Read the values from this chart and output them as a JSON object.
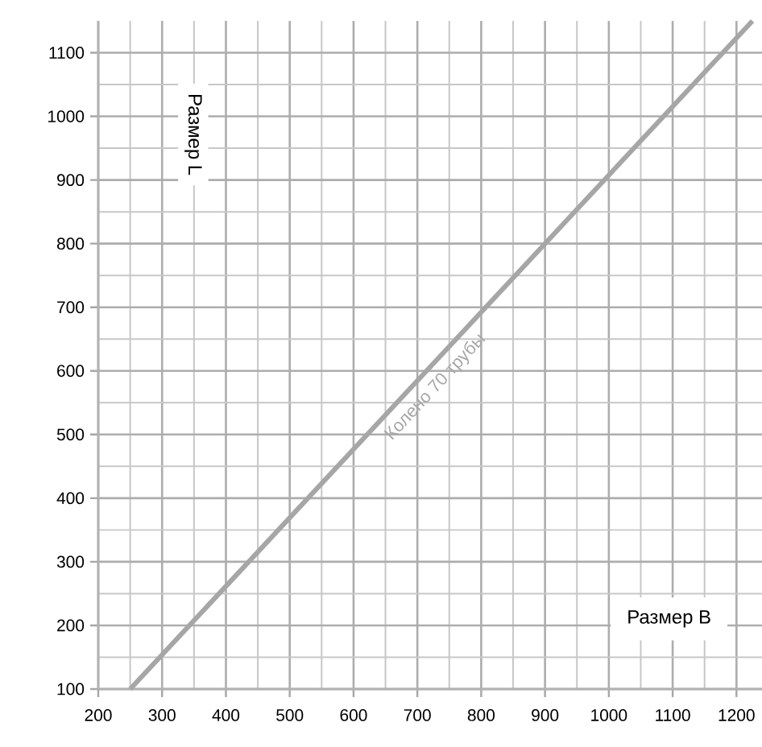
{
  "chart_data": {
    "type": "line",
    "xlabel": "Размер B",
    "ylabel": "Размер L",
    "xlim": [
      200,
      1240
    ],
    "ylim": [
      100,
      1150
    ],
    "xticks": [
      200,
      300,
      400,
      500,
      600,
      700,
      800,
      900,
      1000,
      1100,
      1200
    ],
    "yticks": [
      100,
      200,
      300,
      400,
      500,
      600,
      700,
      800,
      900,
      1000,
      1100
    ],
    "grid": true,
    "marker": "none",
    "line_style": "solid",
    "series": [
      {
        "name": "Колено 70 трубы",
        "color": "#a6a6a6",
        "x": [
          250,
          1225
        ],
        "values": [
          100,
          1150
        ]
      }
    ]
  }
}
